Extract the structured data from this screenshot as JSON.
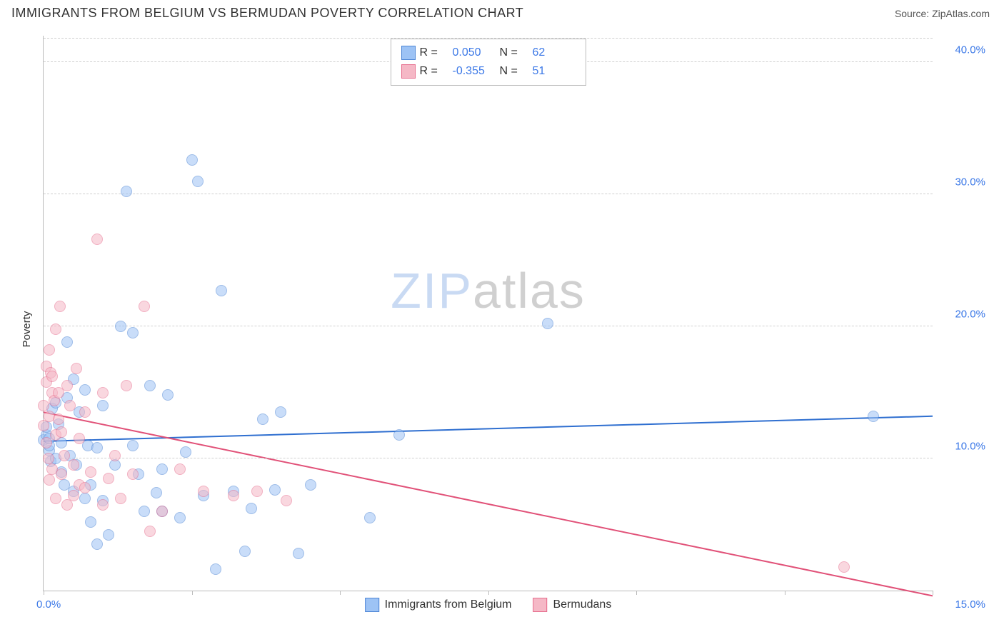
{
  "header": {
    "title": "IMMIGRANTS FROM BELGIUM VS BERMUDAN POVERTY CORRELATION CHART",
    "source_prefix": "Source: ",
    "source_name": "ZipAtlas.com"
  },
  "watermark": {
    "part1": "ZIP",
    "part2": "atlas"
  },
  "chart": {
    "type": "scatter",
    "ylabel": "Poverty",
    "xlim": [
      0,
      15
    ],
    "ylim": [
      0,
      42
    ],
    "x_min_label": "0.0%",
    "x_max_label": "15.0%",
    "grid_color": "#d0d0d0",
    "axis_color": "#bbbbbb",
    "background_color": "#ffffff",
    "marker_radius": 8,
    "marker_opacity": 0.55,
    "yticks": [
      {
        "v": 10,
        "label": "10.0%"
      },
      {
        "v": 20,
        "label": "20.0%"
      },
      {
        "v": 30,
        "label": "30.0%"
      },
      {
        "v": 40,
        "label": "40.0%"
      }
    ],
    "xtick_positions": [
      0,
      2.5,
      5,
      7.5,
      10,
      12.5,
      15
    ],
    "series": [
      {
        "id": "belgium",
        "name": "Immigrants from Belgium",
        "fill": "#9dc3f5",
        "stroke": "#4f87d6",
        "line_color": "#2f6fd0",
        "R": "0.050",
        "N": "62",
        "trend_y_at_x0": 11.3,
        "trend_y_at_xmax": 13.2,
        "points": [
          [
            0.0,
            11.4
          ],
          [
            0.05,
            11.8
          ],
          [
            0.05,
            12.4
          ],
          [
            0.1,
            10.6
          ],
          [
            0.1,
            11.0
          ],
          [
            0.1,
            11.5
          ],
          [
            0.12,
            9.8
          ],
          [
            0.15,
            13.8
          ],
          [
            0.2,
            14.2
          ],
          [
            0.2,
            10.0
          ],
          [
            0.25,
            12.6
          ],
          [
            0.3,
            11.2
          ],
          [
            0.3,
            9.0
          ],
          [
            0.35,
            8.0
          ],
          [
            0.4,
            14.6
          ],
          [
            0.4,
            18.8
          ],
          [
            0.45,
            10.2
          ],
          [
            0.5,
            7.5
          ],
          [
            0.5,
            16.0
          ],
          [
            0.55,
            9.5
          ],
          [
            0.6,
            13.5
          ],
          [
            0.7,
            7.0
          ],
          [
            0.7,
            15.2
          ],
          [
            0.75,
            11.0
          ],
          [
            0.8,
            8.0
          ],
          [
            0.8,
            5.2
          ],
          [
            0.9,
            3.5
          ],
          [
            0.9,
            10.8
          ],
          [
            1.0,
            14.0
          ],
          [
            1.0,
            6.8
          ],
          [
            1.1,
            4.2
          ],
          [
            1.2,
            9.5
          ],
          [
            1.3,
            20.0
          ],
          [
            1.4,
            30.2
          ],
          [
            1.5,
            11.0
          ],
          [
            1.5,
            19.5
          ],
          [
            1.6,
            8.8
          ],
          [
            1.7,
            6.0
          ],
          [
            1.8,
            15.5
          ],
          [
            1.9,
            7.4
          ],
          [
            2.0,
            9.2
          ],
          [
            2.0,
            6.0
          ],
          [
            2.1,
            14.8
          ],
          [
            2.3,
            5.5
          ],
          [
            2.4,
            10.5
          ],
          [
            2.5,
            32.6
          ],
          [
            2.6,
            31.0
          ],
          [
            2.7,
            7.2
          ],
          [
            2.9,
            1.6
          ],
          [
            3.0,
            22.7
          ],
          [
            3.2,
            7.5
          ],
          [
            3.4,
            3.0
          ],
          [
            3.5,
            6.2
          ],
          [
            3.7,
            13.0
          ],
          [
            3.9,
            7.6
          ],
          [
            4.0,
            13.5
          ],
          [
            4.3,
            2.8
          ],
          [
            4.5,
            8.0
          ],
          [
            5.5,
            5.5
          ],
          [
            6.0,
            11.8
          ],
          [
            8.5,
            20.2
          ],
          [
            14.0,
            13.2
          ]
        ]
      },
      {
        "id": "bermudans",
        "name": "Bermudans",
        "fill": "#f5b8c6",
        "stroke": "#e76f8f",
        "line_color": "#e15178",
        "R": "-0.355",
        "N": "51",
        "trend_y_at_x0": 13.5,
        "trend_y_at_xmax": -0.4,
        "points": [
          [
            0.0,
            12.5
          ],
          [
            0.0,
            14.0
          ],
          [
            0.05,
            11.2
          ],
          [
            0.05,
            15.8
          ],
          [
            0.05,
            17.0
          ],
          [
            0.08,
            10.0
          ],
          [
            0.1,
            8.4
          ],
          [
            0.1,
            13.2
          ],
          [
            0.1,
            18.2
          ],
          [
            0.12,
            16.5
          ],
          [
            0.15,
            9.2
          ],
          [
            0.15,
            15.0
          ],
          [
            0.15,
            16.2
          ],
          [
            0.18,
            14.4
          ],
          [
            0.2,
            7.0
          ],
          [
            0.2,
            11.8
          ],
          [
            0.2,
            19.8
          ],
          [
            0.25,
            13.0
          ],
          [
            0.25,
            15.0
          ],
          [
            0.28,
            21.5
          ],
          [
            0.3,
            12.0
          ],
          [
            0.3,
            8.8
          ],
          [
            0.35,
            10.2
          ],
          [
            0.4,
            15.5
          ],
          [
            0.4,
            6.5
          ],
          [
            0.45,
            14.0
          ],
          [
            0.5,
            9.5
          ],
          [
            0.5,
            7.2
          ],
          [
            0.55,
            16.8
          ],
          [
            0.6,
            11.5
          ],
          [
            0.6,
            8.0
          ],
          [
            0.7,
            7.8
          ],
          [
            0.7,
            13.5
          ],
          [
            0.8,
            9.0
          ],
          [
            0.9,
            26.6
          ],
          [
            1.0,
            15.0
          ],
          [
            1.0,
            6.5
          ],
          [
            1.1,
            8.5
          ],
          [
            1.2,
            10.2
          ],
          [
            1.3,
            7.0
          ],
          [
            1.4,
            15.5
          ],
          [
            1.5,
            8.8
          ],
          [
            1.7,
            21.5
          ],
          [
            1.8,
            4.5
          ],
          [
            2.0,
            6.0
          ],
          [
            2.3,
            9.2
          ],
          [
            2.7,
            7.5
          ],
          [
            3.2,
            7.2
          ],
          [
            3.6,
            7.5
          ],
          [
            4.1,
            6.8
          ],
          [
            13.5,
            1.8
          ]
        ]
      }
    ]
  },
  "legend_top": {
    "r_label": "R =",
    "n_label": "N ="
  }
}
